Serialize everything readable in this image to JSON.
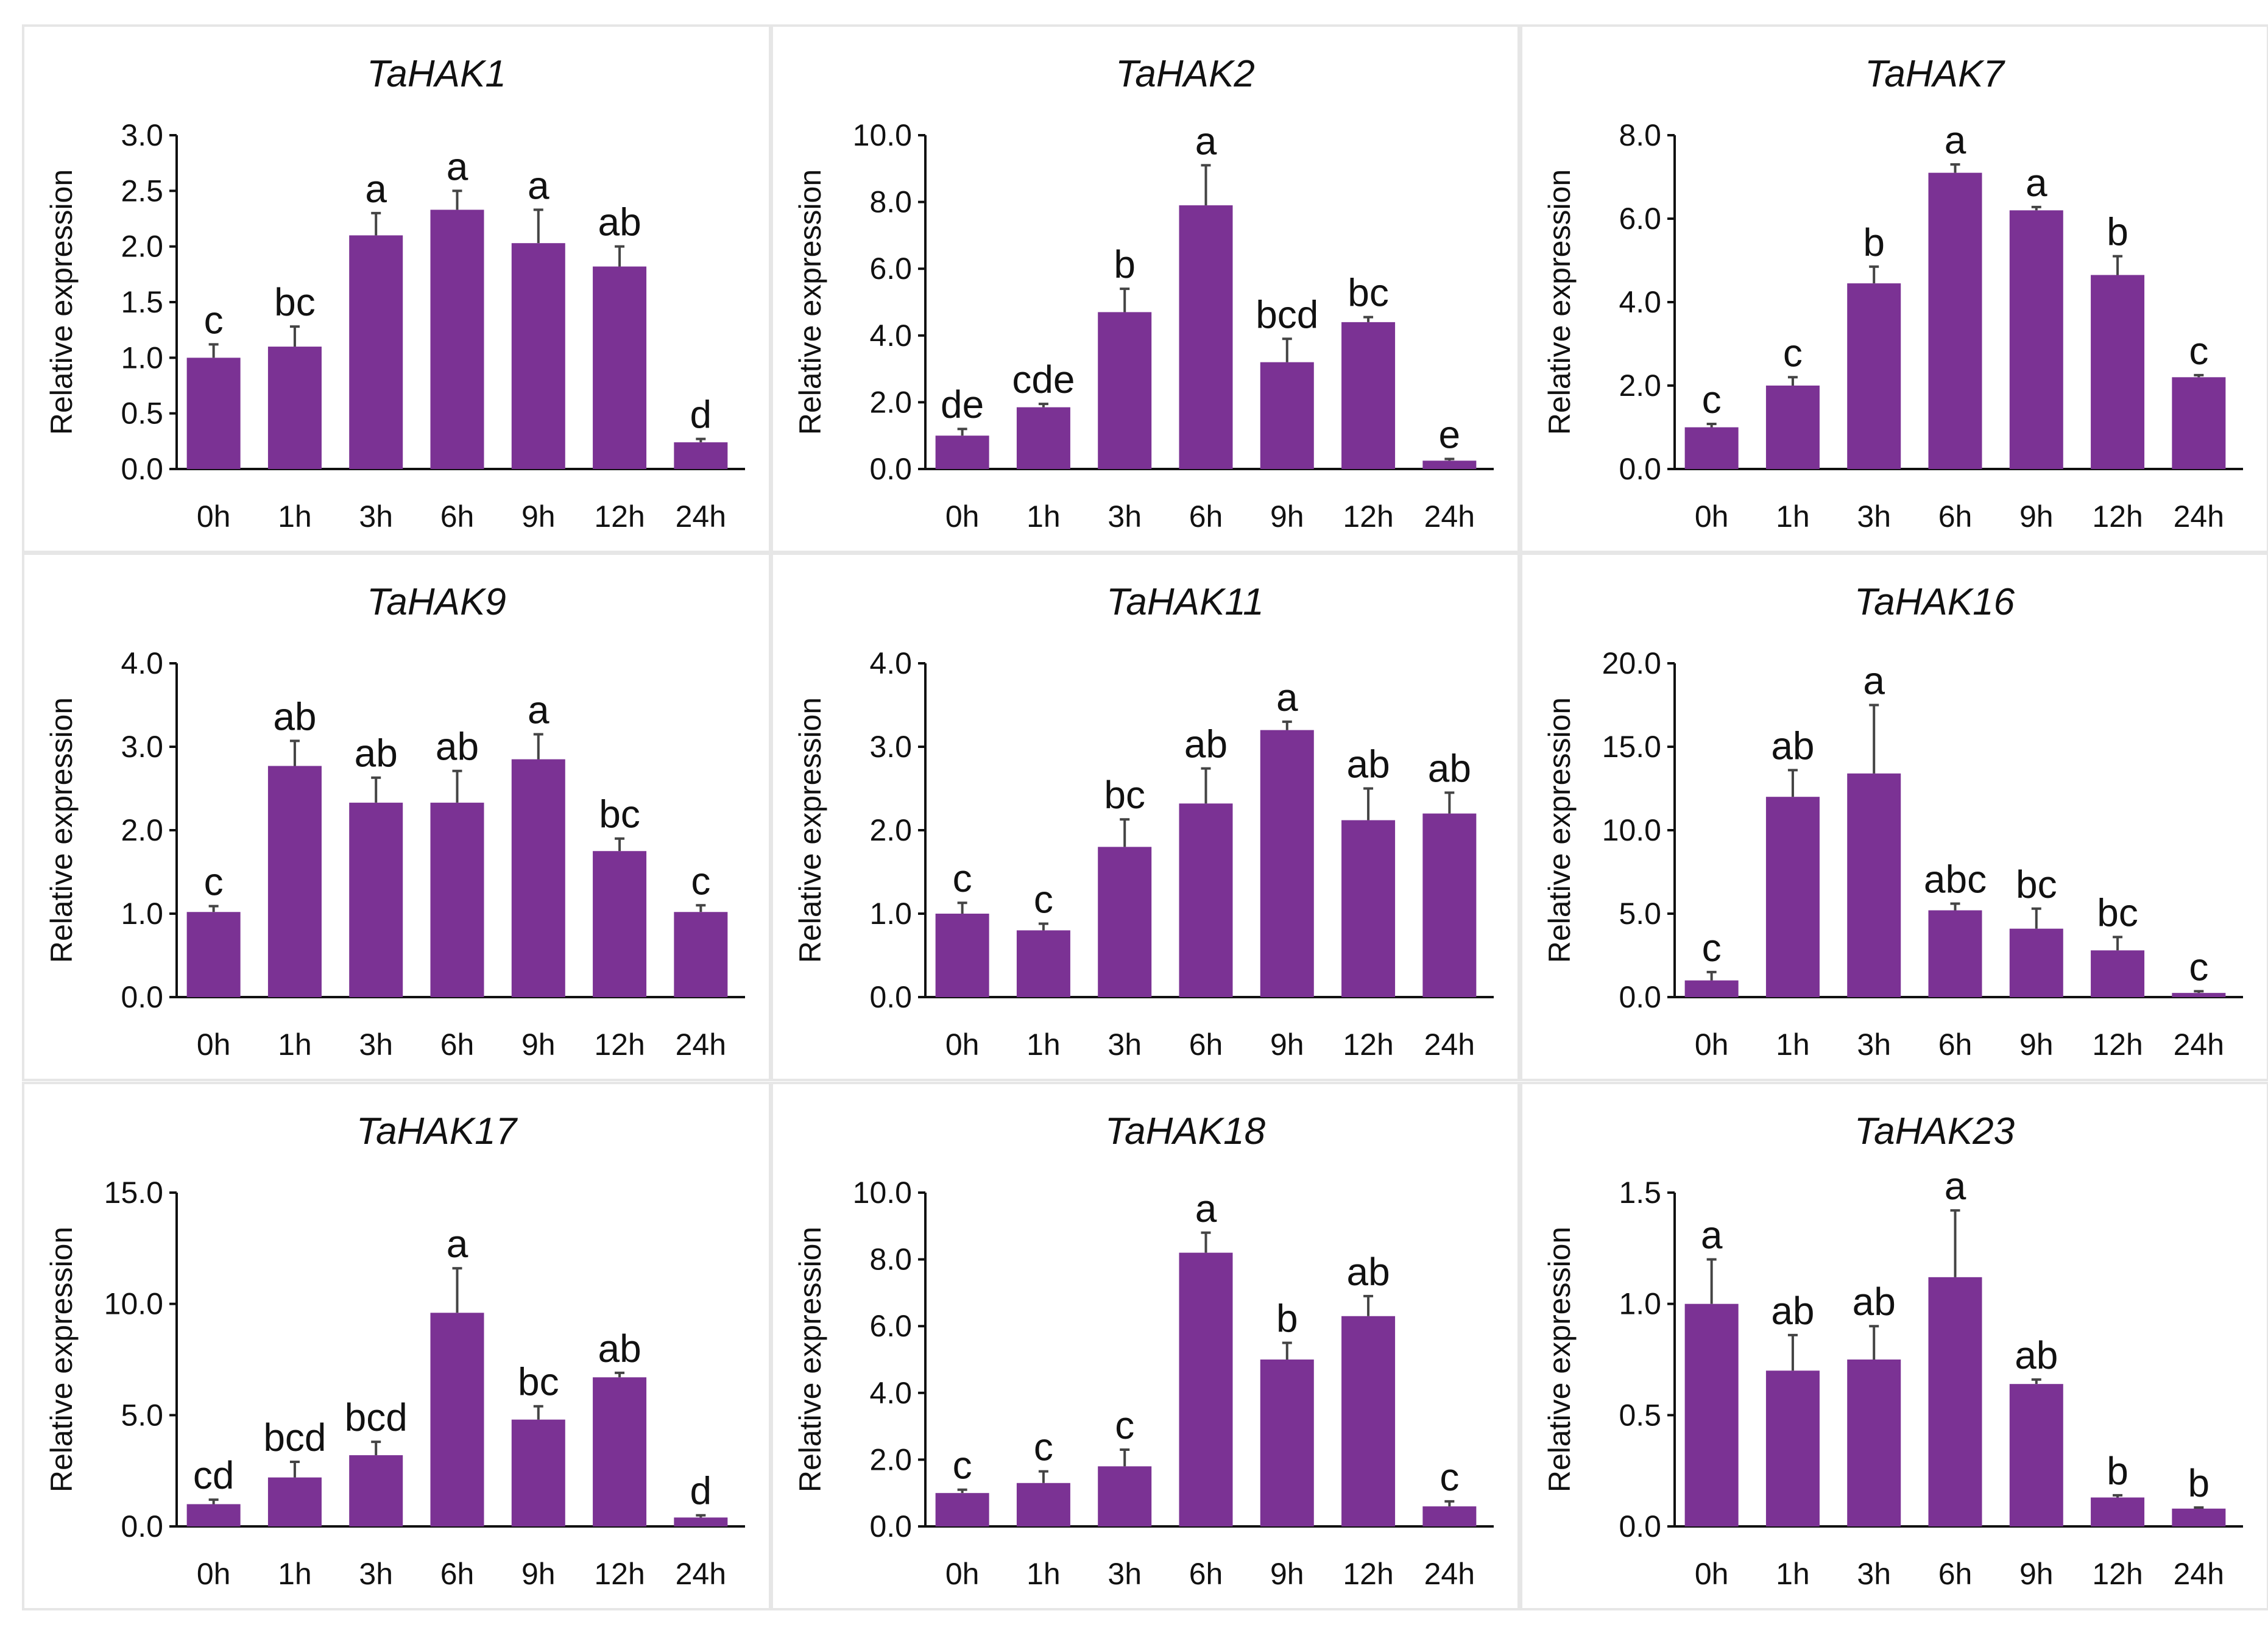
{
  "colors": {
    "bar": "#7B3294",
    "axis": "#111111",
    "error": "#444444"
  },
  "chart_data": [
    {
      "type": "bar",
      "title": "TaHAK1",
      "ylabel": "Relative expression",
      "categories": [
        "0h",
        "1h",
        "3h",
        "6h",
        "9h",
        "12h",
        "24h"
      ],
      "ylim": [
        0,
        3.0
      ],
      "yticks": [
        "0.0",
        "0.5",
        "1.0",
        "1.5",
        "2.0",
        "2.5",
        "3.0"
      ],
      "values": [
        1.0,
        1.1,
        2.1,
        2.33,
        2.03,
        1.82,
        0.24
      ],
      "errors": [
        0.12,
        0.18,
        0.2,
        0.17,
        0.3,
        0.18,
        0.03
      ],
      "letters": [
        "c",
        "bc",
        "a",
        "a",
        "a",
        "ab",
        "d"
      ]
    },
    {
      "type": "bar",
      "title": "TaHAK2",
      "ylabel": "Relative expression",
      "categories": [
        "0h",
        "1h",
        "3h",
        "6h",
        "9h",
        "12h",
        "24h"
      ],
      "ylim": [
        0,
        10.0
      ],
      "yticks": [
        "0.0",
        "2.0",
        "4.0",
        "6.0",
        "8.0",
        "10.0"
      ],
      "values": [
        1.0,
        1.85,
        4.7,
        7.9,
        3.2,
        4.4,
        0.25
      ],
      "errors": [
        0.2,
        0.1,
        0.7,
        1.2,
        0.7,
        0.15,
        0.05
      ],
      "letters": [
        "de",
        "cde",
        "b",
        "a",
        "bcd",
        "bc",
        "e"
      ]
    },
    {
      "type": "bar",
      "title": "TaHAK7",
      "ylabel": "Relative expression",
      "categories": [
        "0h",
        "1h",
        "3h",
        "6h",
        "9h",
        "12h",
        "24h"
      ],
      "ylim": [
        0,
        8.0
      ],
      "yticks": [
        "0.0",
        "2.0",
        "4.0",
        "6.0",
        "8.0"
      ],
      "values": [
        1.0,
        2.0,
        4.45,
        7.1,
        6.2,
        4.65,
        2.2
      ],
      "errors": [
        0.08,
        0.2,
        0.4,
        0.2,
        0.08,
        0.45,
        0.05
      ],
      "letters": [
        "c",
        "c",
        "b",
        "a",
        "a",
        "b",
        "c"
      ]
    },
    {
      "type": "bar",
      "title": "TaHAK9",
      "ylabel": "Relative expression",
      "categories": [
        "0h",
        "1h",
        "3h",
        "6h",
        "9h",
        "12h",
        "24h"
      ],
      "ylim": [
        0,
        4.0
      ],
      "yticks": [
        "0.0",
        "1.0",
        "2.0",
        "3.0",
        "4.0"
      ],
      "values": [
        1.02,
        2.77,
        2.33,
        2.33,
        2.85,
        1.75,
        1.02
      ],
      "errors": [
        0.07,
        0.3,
        0.3,
        0.38,
        0.3,
        0.15,
        0.08
      ],
      "letters": [
        "c",
        "ab",
        "ab",
        "ab",
        "a",
        "bc",
        "c"
      ]
    },
    {
      "type": "bar",
      "title": "TaHAK11",
      "ylabel": "Relative expression",
      "categories": [
        "0h",
        "1h",
        "3h",
        "6h",
        "9h",
        "12h",
        "24h"
      ],
      "ylim": [
        0,
        4.0
      ],
      "yticks": [
        "0.0",
        "1.0",
        "2.0",
        "3.0",
        "4.0"
      ],
      "values": [
        1.0,
        0.8,
        1.8,
        2.32,
        3.2,
        2.12,
        2.2
      ],
      "errors": [
        0.13,
        0.08,
        0.33,
        0.42,
        0.1,
        0.38,
        0.25
      ],
      "letters": [
        "c",
        "c",
        "bc",
        "ab",
        "a",
        "ab",
        "ab"
      ]
    },
    {
      "type": "bar",
      "title": "TaHAK16",
      "ylabel": "Relative expression",
      "categories": [
        "0h",
        "1h",
        "3h",
        "6h",
        "9h",
        "12h",
        "24h"
      ],
      "ylim": [
        0,
        20.0
      ],
      "yticks": [
        "0.0",
        "5.0",
        "10.0",
        "15.0",
        "20.0"
      ],
      "values": [
        1.0,
        12.0,
        13.4,
        5.2,
        4.1,
        2.8,
        0.25
      ],
      "errors": [
        0.5,
        1.6,
        4.1,
        0.4,
        1.2,
        0.8,
        0.1
      ],
      "letters": [
        "c",
        "ab",
        "a",
        "abc",
        "bc",
        "bc",
        "c"
      ]
    },
    {
      "type": "bar",
      "title": "TaHAK17",
      "ylabel": "Relative expression",
      "categories": [
        "0h",
        "1h",
        "3h",
        "6h",
        "9h",
        "12h",
        "24h"
      ],
      "ylim": [
        0,
        15.0
      ],
      "yticks": [
        "0.0",
        "5.0",
        "10.0",
        "15.0"
      ],
      "values": [
        1.0,
        2.2,
        3.2,
        9.6,
        4.8,
        6.7,
        0.4
      ],
      "errors": [
        0.2,
        0.7,
        0.6,
        2.0,
        0.6,
        0.2,
        0.1
      ],
      "letters": [
        "cd",
        "bcd",
        "bcd",
        "a",
        "bc",
        "ab",
        "d"
      ]
    },
    {
      "type": "bar",
      "title": "TaHAK18",
      "ylabel": "Relative expression",
      "categories": [
        "0h",
        "1h",
        "3h",
        "6h",
        "9h",
        "12h",
        "24h"
      ],
      "ylim": [
        0,
        10.0
      ],
      "yticks": [
        "0.0",
        "2.0",
        "4.0",
        "6.0",
        "8.0",
        "10.0"
      ],
      "values": [
        1.0,
        1.3,
        1.8,
        8.2,
        5.0,
        6.3,
        0.6
      ],
      "errors": [
        0.1,
        0.35,
        0.5,
        0.6,
        0.5,
        0.6,
        0.15
      ],
      "letters": [
        "c",
        "c",
        "c",
        "a",
        "b",
        "ab",
        "c"
      ]
    },
    {
      "type": "bar",
      "title": "TaHAK23",
      "ylabel": "Relative expression",
      "categories": [
        "0h",
        "1h",
        "3h",
        "6h",
        "9h",
        "12h",
        "24h"
      ],
      "ylim": [
        0,
        1.5
      ],
      "yticks": [
        "0.0",
        "0.5",
        "1.0",
        "1.5"
      ],
      "values": [
        1.0,
        0.7,
        0.75,
        1.12,
        0.64,
        0.13,
        0.08
      ],
      "errors": [
        0.2,
        0.16,
        0.15,
        0.3,
        0.02,
        0.01,
        0.005
      ],
      "letters": [
        "a",
        "ab",
        "ab",
        "a",
        "ab",
        "b",
        "b"
      ]
    }
  ]
}
